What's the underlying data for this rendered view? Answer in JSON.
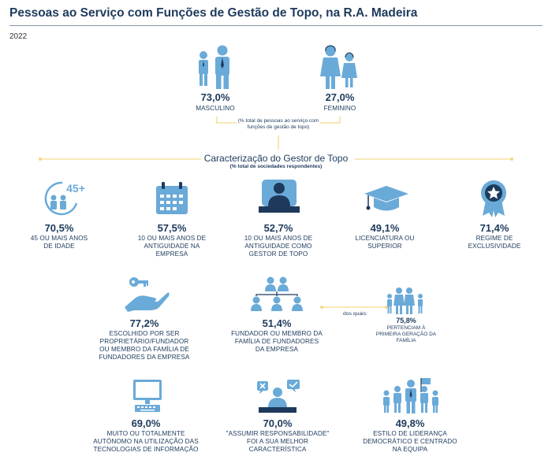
{
  "title": "Pessoas ao Serviço com Funções de Gestão de Topo, na R.A. Madeira",
  "year": "2022",
  "gender": {
    "male": {
      "value": "73,0%",
      "label": "MASCULINO"
    },
    "female": {
      "value": "27,0%",
      "label": "FEMININO"
    },
    "note": "(% total de pessoas ao serviço com funções de gestão de topo)"
  },
  "section": {
    "title": "Caracterização do Gestor de Topo",
    "subtitle": "(% total de sociedades respondentes)"
  },
  "badge_45": "45+",
  "connector_label": "dos quais:",
  "chart_data": {
    "type": "infographic",
    "gender_split": [
      {
        "name": "MASCULINO",
        "value": 73.0
      },
      {
        "name": "FEMININO",
        "value": 27.0
      }
    ],
    "characteristics": [
      {
        "id": "age45",
        "value": "70,5%",
        "label": "45 OU MAIS ANOS DE IDADE"
      },
      {
        "id": "tenure_company",
        "value": "57,5%",
        "label": "10 OU MAIS ANOS DE ANTIGUIDADE NA EMPRESA"
      },
      {
        "id": "tenure_manager",
        "value": "52,7%",
        "label": "10 OU MAIS ANOS DE ANTIGUIDADE COMO GESTOR DE TOPO"
      },
      {
        "id": "degree",
        "value": "49,1%",
        "label": "LICENCIATURA OU SUPERIOR"
      },
      {
        "id": "exclusive",
        "value": "71,4%",
        "label": "REGIME DE EXCLUSIVIDADE"
      },
      {
        "id": "chosen",
        "value": "77,2%",
        "label": "ESCOLHIDO POR SER PROPRIETÁRIO/FUNDADOR OU MEMBRO DA FAMÍLIA DE FUNDADORES DA EMPRESA"
      },
      {
        "id": "founder",
        "value": "51,4%",
        "label": "FUNDADOR OU MEMBRO DA FAMÍLIA DE FUNDADORES DA EMPRESA"
      },
      {
        "id": "first_gen",
        "value": "75,8%",
        "label": "PERTENCIAM À PRIMEIRA GERAÇÃO DA FAMÍLIA"
      },
      {
        "id": "tech",
        "value": "69,0%",
        "label": "MUITO OU TOTALMENTE AUTÓNOMO NA UTILIZAÇÃO DAS TECNOLOGIAS DE INFORMAÇÃO"
      },
      {
        "id": "responsibility",
        "value": "70,0%",
        "label": "\"ASSUMIR RESPONSABILIDADE\" FOI A SUA MELHOR CARACTERÍSTICA"
      },
      {
        "id": "leadership",
        "value": "49,8%",
        "label": "ESTILO DE LIDERANÇA DEMOCRÁTICO E CENTRADO NA EQUIPA"
      }
    ]
  },
  "colors": {
    "navy": "#1d3a5c",
    "icon_blue": "#6aaad8",
    "gold": "#f5d98a",
    "gray": "#7f96ad"
  }
}
